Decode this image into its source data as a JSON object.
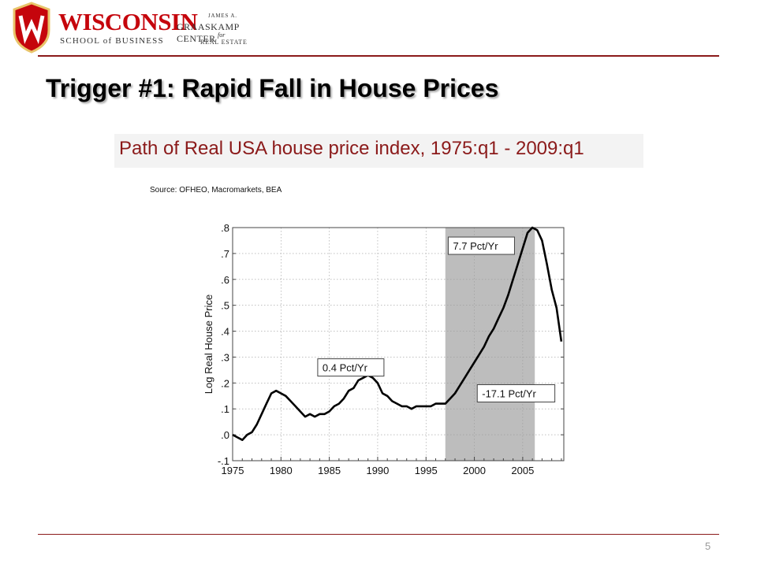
{
  "header": {
    "logo_wordmark": "WISCONSIN",
    "logo_subtitle": "SCHOOL of BUSINESS",
    "center_line1": "JAMES A.",
    "center_line2": "GRAASKAMP CENTER",
    "center_line3": "for",
    "center_line4": "REAL ESTATE",
    "accent_color": "#8b1a1a",
    "brand_red": "#c5050c"
  },
  "slide": {
    "title": "Trigger #1:  Rapid Fall in House Prices",
    "caption": "Path of Real USA house price index, 1975:q1 - 2009:q1",
    "source": "Source: OFHEO, Macromarkets, BEA",
    "page_number": "5"
  },
  "chart_data": {
    "type": "line",
    "ylabel": "Log Real House Price",
    "xlabel": "",
    "xlim": [
      1975,
      2009.25
    ],
    "ylim": [
      -0.1,
      0.8
    ],
    "x_ticks": [
      1975,
      1980,
      1985,
      1990,
      1995,
      2000,
      2005
    ],
    "x_tick_labels": [
      "1975",
      "1980",
      "1985",
      "1990",
      "1995",
      "2000",
      "2005"
    ],
    "y_ticks": [
      -0.1,
      0.0,
      0.1,
      0.2,
      0.3,
      0.4,
      0.5,
      0.6,
      0.7,
      0.8
    ],
    "y_tick_labels": [
      "-.1",
      ".0",
      ".1",
      ".2",
      ".3",
      ".4",
      ".5",
      ".6",
      ".7",
      ".8"
    ],
    "grid": true,
    "shaded_region": {
      "x0": 1997,
      "x1": 2006.25,
      "color": "#bdbdbd"
    },
    "annotations": [
      {
        "text": "7.7 Pct/Yr",
        "x": 1997.3,
        "y": 0.73
      },
      {
        "text": "0.4 Pct/Yr",
        "x": 1983.8,
        "y": 0.26
      },
      {
        "text": "-17.1 Pct/Yr",
        "x": 2000.3,
        "y": 0.16
      }
    ],
    "series": [
      {
        "x": [
          1975.0,
          1975.5,
          1976.0,
          1976.5,
          1977.0,
          1977.5,
          1978.0,
          1978.5,
          1979.0,
          1979.5,
          1980.0,
          1980.5,
          1981.0,
          1981.5,
          1982.0,
          1982.5,
          1983.0,
          1983.5,
          1984.0,
          1984.5,
          1985.0,
          1985.5,
          1986.0,
          1986.5,
          1987.0,
          1987.5,
          1988.0,
          1988.5,
          1989.0,
          1989.5,
          1990.0,
          1990.5,
          1991.0,
          1991.5,
          1992.0,
          1992.5,
          1993.0,
          1993.5,
          1994.0,
          1994.5,
          1995.0,
          1995.5,
          1996.0,
          1996.5,
          1997.0,
          1997.5,
          1998.0,
          1998.5,
          1999.0,
          1999.5,
          2000.0,
          2000.5,
          2001.0,
          2001.5,
          2002.0,
          2002.5,
          2003.0,
          2003.5,
          2004.0,
          2004.5,
          2005.0,
          2005.5,
          2006.0,
          2006.5,
          2007.0,
          2007.5,
          2008.0,
          2008.5,
          2009.0
        ],
        "y": [
          0.0,
          -0.01,
          -0.02,
          0.0,
          0.01,
          0.04,
          0.08,
          0.12,
          0.16,
          0.17,
          0.16,
          0.15,
          0.13,
          0.11,
          0.09,
          0.07,
          0.08,
          0.07,
          0.08,
          0.08,
          0.09,
          0.11,
          0.12,
          0.14,
          0.17,
          0.18,
          0.21,
          0.22,
          0.23,
          0.22,
          0.2,
          0.16,
          0.15,
          0.13,
          0.12,
          0.11,
          0.11,
          0.1,
          0.11,
          0.11,
          0.11,
          0.11,
          0.12,
          0.12,
          0.12,
          0.14,
          0.16,
          0.19,
          0.22,
          0.25,
          0.28,
          0.31,
          0.34,
          0.38,
          0.41,
          0.45,
          0.49,
          0.54,
          0.6,
          0.66,
          0.72,
          0.78,
          0.8,
          0.79,
          0.75,
          0.66,
          0.56,
          0.49,
          0.36
        ]
      }
    ]
  }
}
